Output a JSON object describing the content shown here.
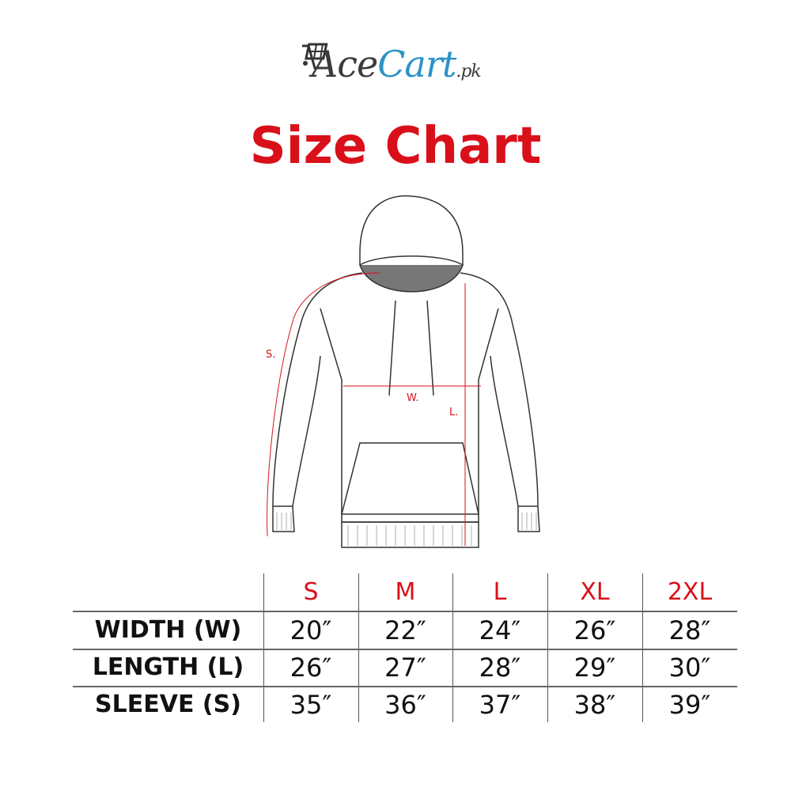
{
  "logo": {
    "part1": "Ace",
    "part2": "Cart",
    "part3": ".pk",
    "icon": "shopping-cart-icon",
    "colors": {
      "dark": "#3b3b3b",
      "blue": "#2a93c6"
    }
  },
  "title": "Size Chart",
  "title_color": "#d9101a",
  "diagram": {
    "labels": {
      "sleeve": "S.",
      "width": "W.",
      "length": "L."
    },
    "measure_color": "#d9101a"
  },
  "table": {
    "sizes": [
      "S",
      "M",
      "L",
      "XL",
      "2XL"
    ],
    "rows": [
      {
        "label": "WIDTH (W)",
        "values": [
          "20″",
          "22″",
          "24″",
          "26″",
          "28″"
        ]
      },
      {
        "label": "LENGTH (L)",
        "values": [
          "26″",
          "27″",
          "28″",
          "29″",
          "30″"
        ]
      },
      {
        "label": "SLEEVE (S)",
        "values": [
          "35″",
          "36″",
          "37″",
          "38″",
          "39″"
        ]
      }
    ]
  }
}
